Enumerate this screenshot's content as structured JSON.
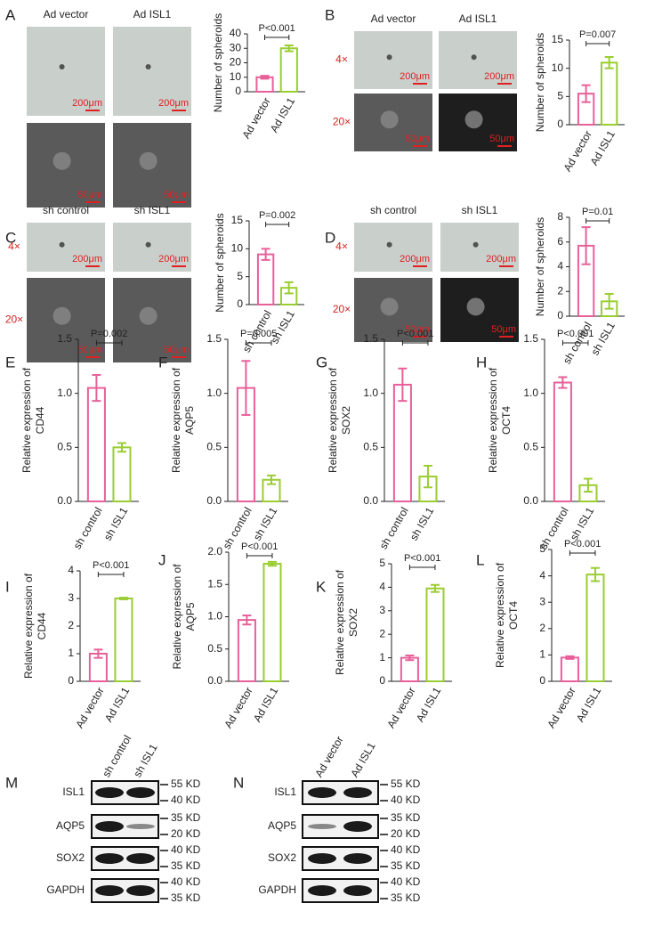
{
  "chart_data": [
    {
      "type": "bar",
      "ylabel": [
        "Number of spheroids"
      ],
      "categories": [
        "Ad vector",
        "Ad ISL1"
      ],
      "values": [
        10,
        30
      ],
      "errors": [
        1,
        2
      ],
      "colors": [
        "#e8609a",
        "#9acd32"
      ],
      "ylim": [
        0,
        40
      ],
      "yticks": [
        0,
        10,
        20,
        30,
        40
      ],
      "annotation": "P<0.001"
    },
    {
      "type": "bar",
      "ylabel": [
        "Number of spheroids"
      ],
      "categories": [
        "Ad vector",
        "Ad ISL1"
      ],
      "values": [
        5.5,
        11
      ],
      "errors": [
        1.5,
        1
      ],
      "colors": [
        "#e8609a",
        "#9acd32"
      ],
      "ylim": [
        0,
        15
      ],
      "yticks": [
        0,
        5,
        10,
        15
      ],
      "annotation": "P=0.007"
    },
    {
      "type": "bar",
      "ylabel": [
        "Number of spheroids"
      ],
      "categories": [
        "sh control",
        "sh ISL1"
      ],
      "values": [
        9,
        3
      ],
      "errors": [
        1,
        1
      ],
      "colors": [
        "#e8609a",
        "#9acd32"
      ],
      "ylim": [
        0,
        15
      ],
      "yticks": [
        0,
        5,
        10,
        15
      ],
      "annotation": "P=0.002"
    },
    {
      "type": "bar",
      "ylabel": [
        "Number of spheroids"
      ],
      "categories": [
        "sh control",
        "sh ISL1"
      ],
      "values": [
        5.7,
        1.2
      ],
      "errors": [
        1.5,
        0.6
      ],
      "colors": [
        "#e8609a",
        "#9acd32"
      ],
      "ylim": [
        0,
        8
      ],
      "yticks": [
        0,
        2,
        4,
        6,
        8
      ],
      "annotation": "P=0.01"
    },
    {
      "type": "bar",
      "panel": "E",
      "ylabel": [
        "Relative expression of",
        "CD44"
      ],
      "categories": [
        "sh control",
        "sh ISL1"
      ],
      "values": [
        1.05,
        0.5
      ],
      "errors": [
        0.12,
        0.04
      ],
      "colors": [
        "#e8609a",
        "#9acd32"
      ],
      "ylim": [
        0,
        1.5
      ],
      "yticks": [
        {
          "value": 0,
          "label": "0.0"
        },
        0.5,
        {
          "value": 1,
          "label": "1.0"
        },
        1.5
      ],
      "annotation": "P=0.002"
    },
    {
      "type": "bar",
      "panel": "F",
      "ylabel": [
        "Relative expression of",
        "AQP5"
      ],
      "categories": [
        "sh control",
        "sh ISL1"
      ],
      "values": [
        1.05,
        0.2
      ],
      "errors": [
        0.25,
        0.04
      ],
      "colors": [
        "#e8609a",
        "#9acd32"
      ],
      "ylim": [
        0,
        1.5
      ],
      "yticks": [
        {
          "value": 0,
          "label": "0.0"
        },
        0.5,
        {
          "value": 1,
          "label": "1.0"
        },
        1.5
      ],
      "annotation": "P=0.005"
    },
    {
      "type": "bar",
      "panel": "G",
      "ylabel": [
        "Relative expression of",
        "SOX2"
      ],
      "categories": [
        "sh control",
        "sh ISL1"
      ],
      "values": [
        1.08,
        0.23
      ],
      "errors": [
        0.15,
        0.1
      ],
      "colors": [
        "#e8609a",
        "#9acd32"
      ],
      "ylim": [
        0,
        1.5
      ],
      "yticks": [
        {
          "value": 0,
          "label": "0.0"
        },
        0.5,
        {
          "value": 1,
          "label": "1.0"
        },
        1.5
      ],
      "annotation": "P<0.001"
    },
    {
      "type": "bar",
      "panel": "H",
      "ylabel": [
        "Relative expression of",
        "OCT4"
      ],
      "categories": [
        "sh control",
        "sh ISL1"
      ],
      "values": [
        1.1,
        0.15
      ],
      "errors": [
        0.05,
        0.06
      ],
      "colors": [
        "#e8609a",
        "#9acd32"
      ],
      "ylim": [
        0,
        1.5
      ],
      "yticks": [
        {
          "value": 0,
          "label": "0.0"
        },
        0.5,
        {
          "value": 1,
          "label": "1.0"
        },
        1.5
      ],
      "annotation": "P<0.001"
    },
    {
      "type": "bar",
      "panel": "I",
      "ylabel": [
        "Relative expression of",
        "CD44"
      ],
      "categories": [
        "Ad vector",
        "Ad ISL1"
      ],
      "values": [
        1.0,
        3.0
      ],
      "errors": [
        0.15,
        0.03
      ],
      "colors": [
        "#e8609a",
        "#9acd32"
      ],
      "ylim": [
        0,
        4
      ],
      "yticks": [
        0,
        1,
        2,
        3,
        4
      ],
      "annotation": "P<0.001"
    },
    {
      "type": "bar",
      "panel": "J",
      "ylabel": [
        "Relative expression of",
        "AQP5"
      ],
      "categories": [
        "Ad vector",
        "Ad ISL1"
      ],
      "values": [
        0.95,
        1.82
      ],
      "errors": [
        0.07,
        0.03
      ],
      "colors": [
        "#e8609a",
        "#9acd32"
      ],
      "ylim": [
        0,
        2
      ],
      "yticks": [
        {
          "value": 0,
          "label": "0.0"
        },
        0.5,
        {
          "value": 1,
          "label": "1.0"
        },
        1.5,
        {
          "value": 2,
          "label": "2.0"
        }
      ],
      "annotation": "P<0.001"
    },
    {
      "type": "bar",
      "panel": "K",
      "ylabel": [
        "Relative expression of",
        "SOX2"
      ],
      "categories": [
        "Ad vector",
        "Ad ISL1"
      ],
      "values": [
        1.0,
        3.95
      ],
      "errors": [
        0.1,
        0.15
      ],
      "colors": [
        "#e8609a",
        "#9acd32"
      ],
      "ylim": [
        0,
        5
      ],
      "yticks": [
        0,
        1,
        2,
        3,
        4,
        5
      ],
      "annotation": "P<0.001"
    },
    {
      "type": "bar",
      "panel": "L",
      "ylabel": [
        "Relative expression of",
        "OCT4"
      ],
      "categories": [
        "Ad vector",
        "Ad ISL1"
      ],
      "values": [
        0.9,
        4.05
      ],
      "errors": [
        0.05,
        0.25
      ],
      "colors": [
        "#e8609a",
        "#9acd32"
      ],
      "ylim": [
        0,
        5
      ],
      "yticks": [
        0,
        1,
        2,
        3,
        4,
        5
      ],
      "annotation": "P<0.001"
    }
  ],
  "image_panels": [
    {
      "letter": "A",
      "columns": [
        "Ad vector",
        "Ad ISL1"
      ],
      "scale_bars": [
        "200μm",
        "50μm"
      ]
    },
    {
      "letter": "B",
      "columns": [
        "Ad vector",
        "Ad ISL1"
      ],
      "rows": [
        "4×",
        "20×"
      ],
      "scale_bars": [
        "200μm",
        "50μm"
      ]
    },
    {
      "letter": "C",
      "columns": [
        "sh control",
        "sh ISL1"
      ],
      "rows": [
        "4×",
        "20×"
      ],
      "scale_bars": [
        "200μm",
        "50μm"
      ]
    },
    {
      "letter": "D",
      "columns": [
        "sh control",
        "sh ISL1"
      ],
      "rows": [
        "4×",
        "20×"
      ],
      "scale_bars": [
        "200μm",
        "50μm"
      ]
    }
  ],
  "blots": [
    {
      "letter": "M",
      "lanes": [
        "sh control",
        "sh ISL1"
      ],
      "bands": [
        {
          "name": "ISL1",
          "markers": [
            "55 KD",
            "40 KD"
          ]
        },
        {
          "name": "AQP5",
          "markers": [
            "35 KD",
            "20 KD"
          ]
        },
        {
          "name": "SOX2",
          "markers": [
            "40 KD",
            "35 KD"
          ]
        },
        {
          "name": "GAPDH",
          "markers": [
            "40 KD",
            "35 KD"
          ]
        }
      ]
    },
    {
      "letter": "N",
      "lanes": [
        "Ad vector",
        "Ad ISL1"
      ],
      "bands": [
        {
          "name": "ISL1",
          "markers": [
            "55 KD",
            "40 KD"
          ]
        },
        {
          "name": "AQP5",
          "markers": [
            "35 KD",
            "20 KD"
          ]
        },
        {
          "name": "SOX2",
          "markers": [
            "40 KD",
            "35 KD"
          ]
        },
        {
          "name": "GAPDH",
          "markers": [
            "40 KD",
            "35 KD"
          ]
        }
      ]
    }
  ]
}
